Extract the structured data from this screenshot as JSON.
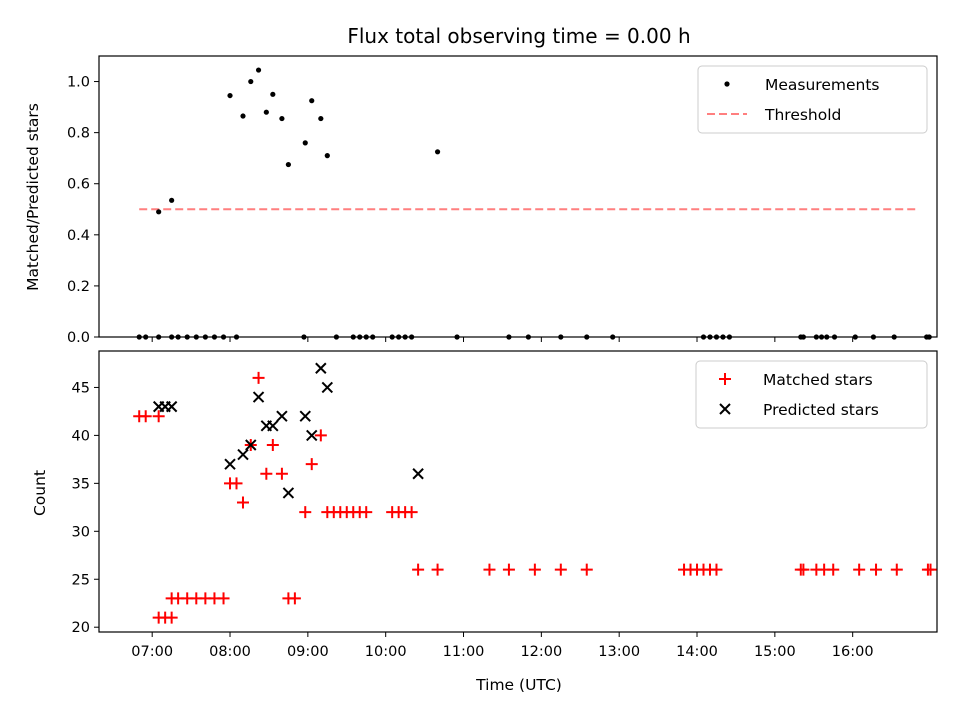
{
  "figure": {
    "title": "Flux total observing time = 0.00 h",
    "xlabel": "Time (UTC)"
  },
  "chart_data": [
    {
      "type": "scatter",
      "ylabel": "Matched/Predicted stars",
      "xlim": [
        "06:19",
        "17:05"
      ],
      "ylim": [
        0,
        1.1
      ],
      "yticks": [
        "0.0",
        "0.2",
        "0.4",
        "0.6",
        "0.8",
        "1.0"
      ],
      "grid": false,
      "legend_position": "top-right",
      "colors": {
        "measurements": "#000000",
        "threshold": "#ff7f7f"
      },
      "series": [
        {
          "name": "Measurements",
          "marker": "dot",
          "points": [
            [
              "06:50",
              0
            ],
            [
              "06:55",
              0
            ],
            [
              "07:05",
              0.49
            ],
            [
              "07:05",
              0
            ],
            [
              "07:15",
              0
            ],
            [
              "07:15",
              0.535
            ],
            [
              "07:20",
              0
            ],
            [
              "07:27",
              0
            ],
            [
              "07:34",
              0
            ],
            [
              "07:41",
              0
            ],
            [
              "07:48",
              0
            ],
            [
              "07:55",
              0
            ],
            [
              "08:00",
              0.945
            ],
            [
              "08:05",
              0
            ],
            [
              "08:10",
              0.865
            ],
            [
              "08:16",
              1.0
            ],
            [
              "08:22",
              1.045
            ],
            [
              "08:28",
              0.88
            ],
            [
              "08:33",
              0.95
            ],
            [
              "08:40",
              0.855
            ],
            [
              "08:45",
              0.675
            ],
            [
              "08:57",
              0
            ],
            [
              "08:58",
              0.76
            ],
            [
              "09:03",
              0.925
            ],
            [
              "09:10",
              0.855
            ],
            [
              "09:15",
              0.71
            ],
            [
              "09:22",
              0
            ],
            [
              "09:35",
              0
            ],
            [
              "09:40",
              0
            ],
            [
              "09:45",
              0
            ],
            [
              "09:50",
              0
            ],
            [
              "10:05",
              0
            ],
            [
              "10:10",
              0
            ],
            [
              "10:15",
              0
            ],
            [
              "10:20",
              0
            ],
            [
              "10:40",
              0.725
            ],
            [
              "10:55",
              0
            ],
            [
              "11:35",
              0
            ],
            [
              "11:50",
              0
            ],
            [
              "12:15",
              0
            ],
            [
              "12:35",
              0
            ],
            [
              "12:55",
              0
            ],
            [
              "14:05",
              0
            ],
            [
              "14:10",
              0
            ],
            [
              "14:15",
              0
            ],
            [
              "14:20",
              0
            ],
            [
              "14:25",
              0
            ],
            [
              "15:20",
              0
            ],
            [
              "15:22",
              0
            ],
            [
              "15:32",
              0
            ],
            [
              "15:36",
              0
            ],
            [
              "15:40",
              0
            ],
            [
              "15:46",
              0
            ],
            [
              "16:02",
              0
            ],
            [
              "16:16",
              0
            ],
            [
              "16:32",
              0
            ],
            [
              "16:57",
              0
            ],
            [
              "16:59",
              0
            ]
          ]
        },
        {
          "name": "Threshold",
          "style": "dashed",
          "points": [
            [
              "06:50",
              0.5
            ],
            [
              "16:50",
              0.5
            ]
          ]
        }
      ]
    },
    {
      "type": "scatter",
      "ylabel": "Count",
      "xlim": [
        "06:19",
        "17:05"
      ],
      "ylim": [
        19.5,
        48.8
      ],
      "yticks": [
        "20",
        "25",
        "30",
        "35",
        "40",
        "45"
      ],
      "xticks": [
        "07:00",
        "08:00",
        "09:00",
        "10:00",
        "11:00",
        "12:00",
        "13:00",
        "14:00",
        "15:00",
        "16:00"
      ],
      "grid": false,
      "legend_position": "top-right",
      "colors": {
        "matched": "#ff0000",
        "predicted": "#000000"
      },
      "series": [
        {
          "name": "Matched stars",
          "marker": "plus",
          "points": [
            [
              "06:50",
              42
            ],
            [
              "06:55",
              42
            ],
            [
              "07:05",
              42
            ],
            [
              "07:05",
              21
            ],
            [
              "07:10",
              21
            ],
            [
              "07:15",
              21
            ],
            [
              "07:15",
              23
            ],
            [
              "07:20",
              23
            ],
            [
              "07:27",
              23
            ],
            [
              "07:34",
              23
            ],
            [
              "07:41",
              23
            ],
            [
              "07:48",
              23
            ],
            [
              "07:55",
              23
            ],
            [
              "08:00",
              35
            ],
            [
              "08:05",
              35
            ],
            [
              "08:10",
              33
            ],
            [
              "08:16",
              39
            ],
            [
              "08:22",
              46
            ],
            [
              "08:28",
              36
            ],
            [
              "08:33",
              39
            ],
            [
              "08:40",
              36
            ],
            [
              "08:45",
              23
            ],
            [
              "08:50",
              23
            ],
            [
              "08:58",
              32
            ],
            [
              "09:03",
              37
            ],
            [
              "09:10",
              40
            ],
            [
              "09:15",
              32
            ],
            [
              "09:20",
              32
            ],
            [
              "09:25",
              32
            ],
            [
              "09:30",
              32
            ],
            [
              "09:35",
              32
            ],
            [
              "09:40",
              32
            ],
            [
              "09:45",
              32
            ],
            [
              "10:05",
              32
            ],
            [
              "10:10",
              32
            ],
            [
              "10:15",
              32
            ],
            [
              "10:20",
              32
            ],
            [
              "10:25",
              26
            ],
            [
              "10:40",
              26
            ],
            [
              "11:20",
              26
            ],
            [
              "11:35",
              26
            ],
            [
              "11:55",
              26
            ],
            [
              "12:15",
              26
            ],
            [
              "12:35",
              26
            ],
            [
              "13:50",
              26
            ],
            [
              "13:55",
              26
            ],
            [
              "14:00",
              26
            ],
            [
              "14:05",
              26
            ],
            [
              "14:10",
              26
            ],
            [
              "14:15",
              26
            ],
            [
              "15:20",
              26
            ],
            [
              "15:22",
              26
            ],
            [
              "15:32",
              26
            ],
            [
              "15:38",
              26
            ],
            [
              "15:45",
              26
            ],
            [
              "16:05",
              26
            ],
            [
              "16:18",
              26
            ],
            [
              "16:34",
              26
            ],
            [
              "16:58",
              26
            ],
            [
              "17:00",
              26
            ]
          ]
        },
        {
          "name": "Predicted stars",
          "marker": "x",
          "points": [
            [
              "07:05",
              43
            ],
            [
              "07:10",
              43
            ],
            [
              "07:15",
              43
            ],
            [
              "08:00",
              37
            ],
            [
              "08:10",
              38
            ],
            [
              "08:16",
              39
            ],
            [
              "08:22",
              44
            ],
            [
              "08:28",
              41
            ],
            [
              "08:33",
              41
            ],
            [
              "08:40",
              42
            ],
            [
              "08:45",
              34
            ],
            [
              "08:58",
              42
            ],
            [
              "09:03",
              40
            ],
            [
              "09:10",
              47
            ],
            [
              "09:15",
              45
            ],
            [
              "10:25",
              36
            ]
          ]
        }
      ]
    }
  ]
}
